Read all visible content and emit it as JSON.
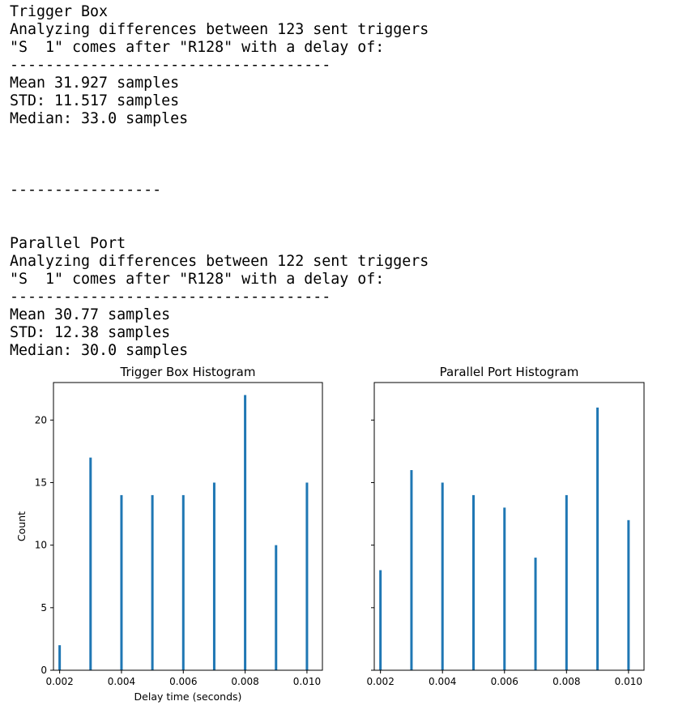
{
  "output": {
    "lines": [
      "Trigger Box",
      "Analyzing differences between 123 sent triggers",
      "\"S  1\" comes after \"R128\" with a delay of:",
      "------------------------------------",
      "Mean 31.927 samples",
      "STD: 11.517 samples",
      "Median: 33.0 samples",
      "",
      "",
      "",
      "-----------------",
      "",
      "",
      "Parallel Port",
      "Analyzing differences between 122 sent triggers",
      "\"S  1\" comes after \"R128\" with a delay of:",
      "------------------------------------",
      "Mean 30.77 samples",
      "STD: 12.38 samples",
      "Median: 30.0 samples"
    ]
  },
  "chart_data": [
    {
      "type": "bar",
      "title": "Trigger Box Histogram",
      "xlabel": "Delay time (seconds)",
      "ylabel": "Count",
      "xlim": [
        0.0018,
        0.0105
      ],
      "ylim": [
        0,
        23
      ],
      "xticks": [
        "0.002",
        "0.004",
        "0.006",
        "0.008",
        "0.010"
      ],
      "yticks": [
        "0",
        "5",
        "10",
        "15",
        "20"
      ],
      "bar_color": "#1f77b4",
      "x": [
        0.002,
        0.003,
        0.004,
        0.005,
        0.006,
        0.007,
        0.008,
        0.009,
        0.01
      ],
      "values": [
        2,
        17,
        14,
        14,
        14,
        15,
        22,
        10,
        15
      ]
    },
    {
      "type": "bar",
      "title": "Parallel Port Histogram",
      "xlabel": "",
      "ylabel": "",
      "xlim": [
        0.0018,
        0.0105
      ],
      "ylim": [
        0,
        23
      ],
      "xticks": [
        "0.002",
        "0.004",
        "0.006",
        "0.008",
        "0.010"
      ],
      "yticks": [],
      "bar_color": "#1f77b4",
      "x": [
        0.002,
        0.003,
        0.004,
        0.005,
        0.006,
        0.007,
        0.008,
        0.009,
        0.01
      ],
      "values": [
        8,
        16,
        15,
        14,
        13,
        9,
        14,
        21,
        12
      ]
    }
  ]
}
